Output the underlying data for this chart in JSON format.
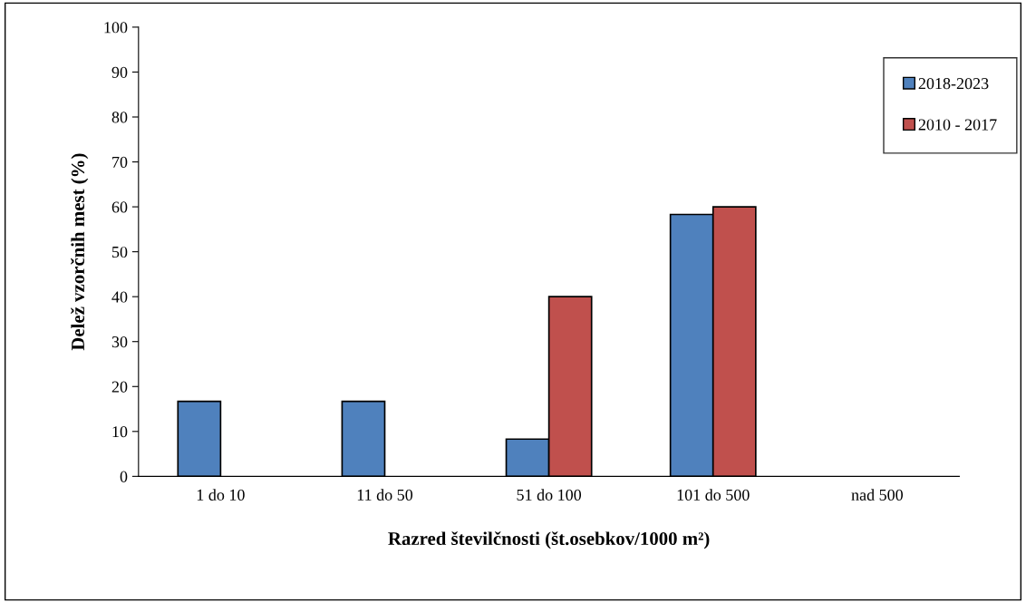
{
  "chart_data": {
    "type": "bar",
    "xlabel": "Razred številčnosti (št.osebkov/1000 m²)",
    "ylabel": "Delež vzorčnih mest (%)",
    "categories": [
      "1 do 10",
      "11 do 50",
      "51 do 100",
      "101 do 500",
      "nad 500"
    ],
    "series": [
      {
        "name": "2018-2023",
        "color": "#4f81bd",
        "values": [
          16.7,
          16.7,
          8.3,
          58.3,
          null
        ]
      },
      {
        "name": "2010 - 2017",
        "color": "#c0504d",
        "values": [
          null,
          null,
          40,
          60,
          null
        ]
      }
    ],
    "ylim": [
      0,
      100
    ],
    "yticks": [
      0,
      10,
      20,
      30,
      40,
      50,
      60,
      70,
      80,
      90,
      100
    ],
    "grid": false,
    "legend": "top right"
  }
}
